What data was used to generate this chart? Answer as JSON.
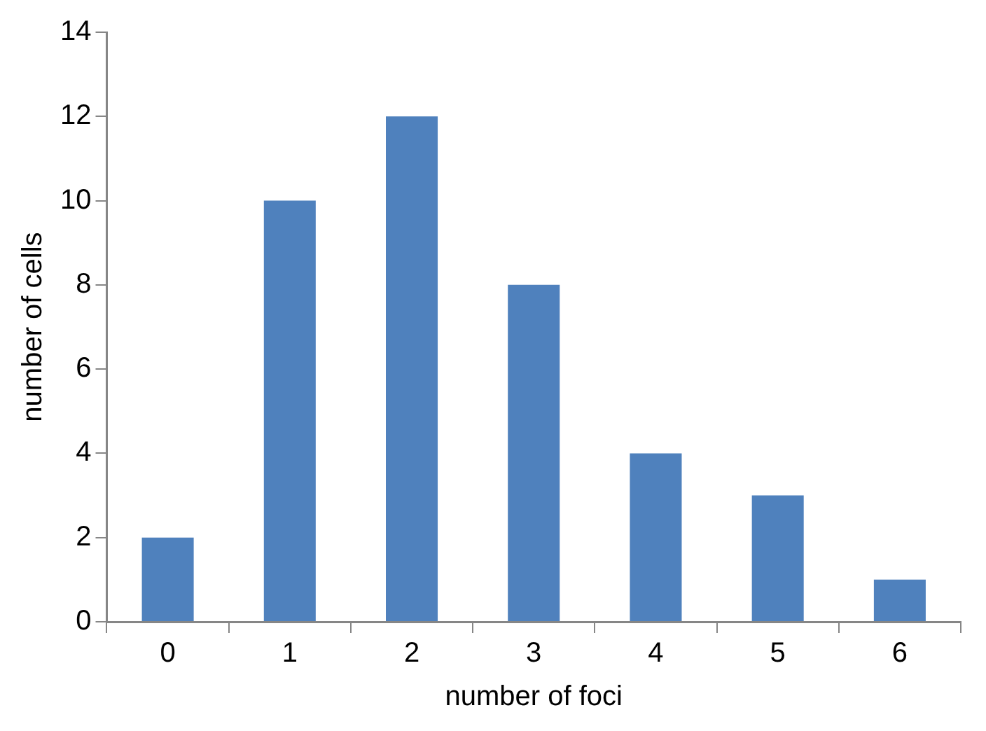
{
  "chart_data": {
    "type": "bar",
    "xlabel": "number of foci",
    "ylabel": "number of cells",
    "categories": [
      "0",
      "1",
      "2",
      "3",
      "4",
      "5",
      "6"
    ],
    "values": [
      2,
      10,
      12,
      8,
      4,
      3,
      1
    ],
    "color": "#4f81bd",
    "ylim": [
      0,
      14
    ],
    "yticks": [
      0,
      2,
      4,
      6,
      8,
      10,
      12,
      14
    ],
    "grid": false,
    "legend": false
  }
}
